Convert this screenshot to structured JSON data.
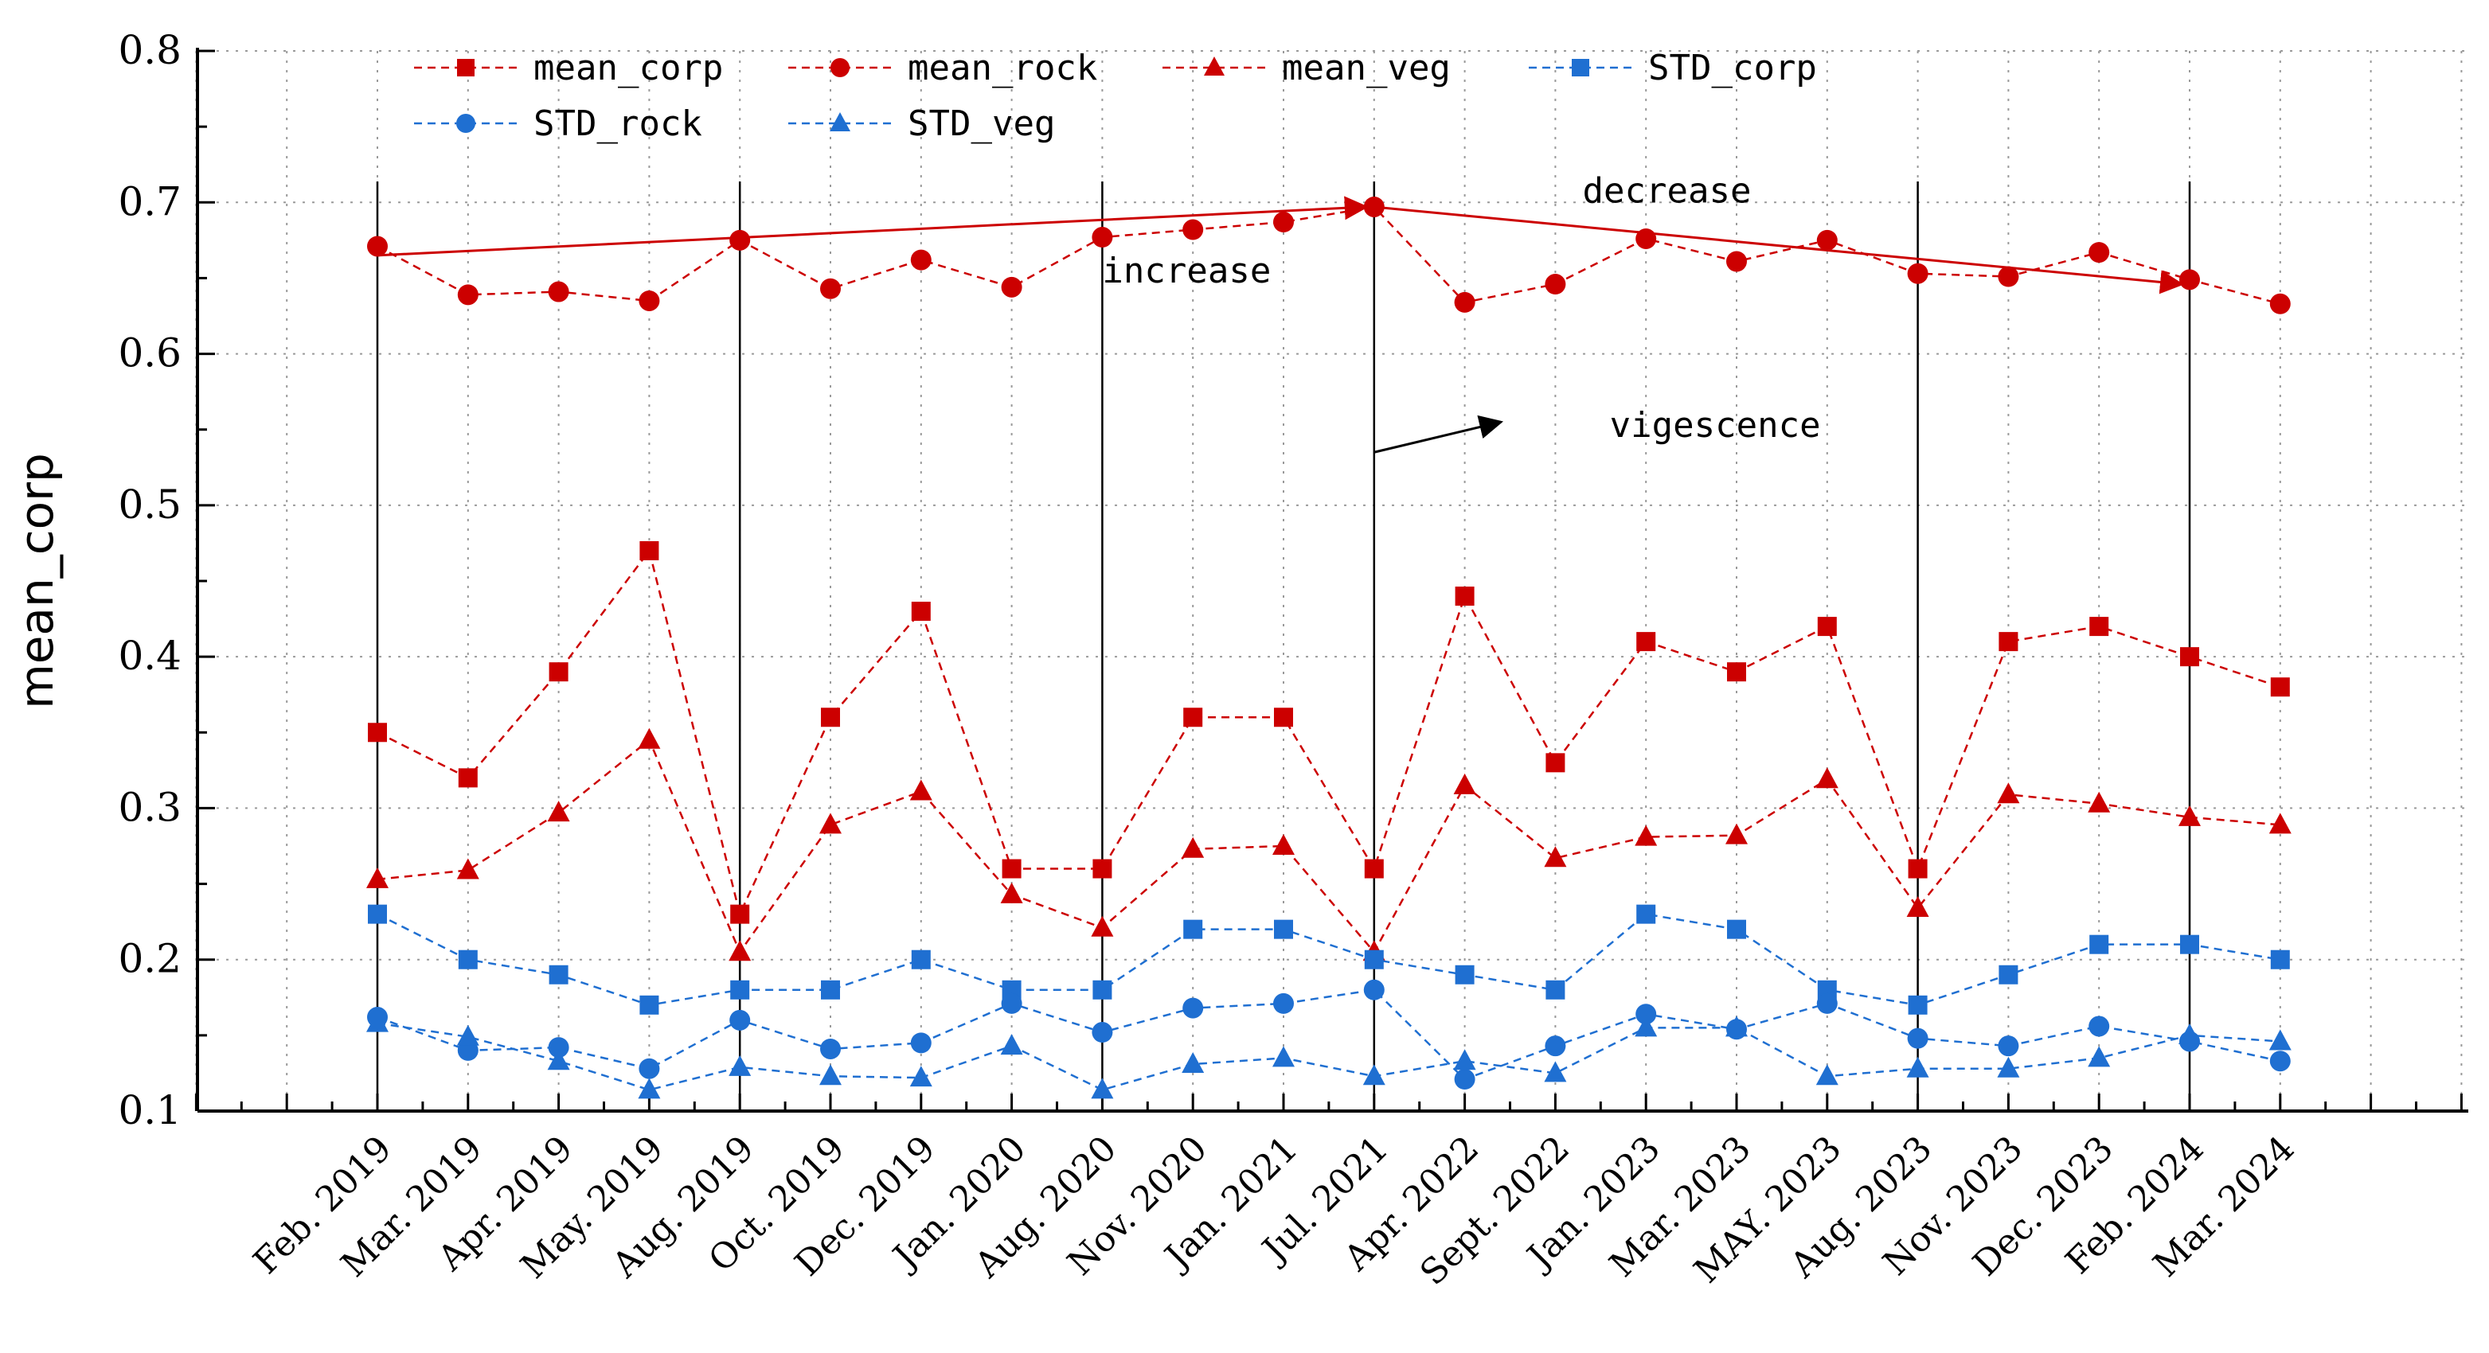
{
  "chart_data": {
    "type": "line",
    "ylabel": "mean_corp",
    "xlabel": "",
    "ylim": [
      0.1,
      0.8
    ],
    "yticks": [
      "0.1",
      "0.2",
      "0.3",
      "0.4",
      "0.5",
      "0.6",
      "0.7",
      "0.8"
    ],
    "grid": true,
    "categories": [
      "Feb. 2019",
      "Mar. 2019",
      "Apr. 2019",
      "May. 2019",
      "Aug. 2019",
      "Oct. 2019",
      "Dec. 2019",
      "Jan. 2020",
      "Aug. 2020",
      "Nov. 2020",
      "Jan. 2021",
      "Jul. 2021",
      "Apr. 2022",
      "Sept. 2022",
      "Jan. 2023",
      "Mar. 2023",
      "MAY. 2023",
      "Aug. 2023",
      "Nov. 2023",
      "Dec. 2023",
      "Feb. 2024",
      "Mar. 2024"
    ],
    "series": [
      {
        "name": "mean_corp",
        "color": "#cc0000",
        "marker": "square",
        "values": [
          0.35,
          0.32,
          0.39,
          0.47,
          0.23,
          0.36,
          0.43,
          0.26,
          0.26,
          0.36,
          0.36,
          0.26,
          0.44,
          0.33,
          0.41,
          0.39,
          0.42,
          0.26,
          0.41,
          0.42,
          0.4,
          0.38
        ]
      },
      {
        "name": "mean_rock",
        "color": "#cc0000",
        "marker": "circle",
        "values": [
          0.671,
          0.639,
          0.641,
          0.635,
          0.675,
          0.643,
          0.662,
          0.644,
          0.677,
          0.682,
          0.687,
          0.697,
          0.634,
          0.646,
          0.676,
          0.661,
          0.675,
          0.653,
          0.651,
          0.667,
          0.649,
          0.633
        ]
      },
      {
        "name": "mean_veg",
        "color": "#cc0000",
        "marker": "triangle",
        "values": [
          0.253,
          0.259,
          0.297,
          0.345,
          0.205,
          0.289,
          0.311,
          0.243,
          0.221,
          0.273,
          0.275,
          0.205,
          0.315,
          0.267,
          0.281,
          0.282,
          0.319,
          0.234,
          0.309,
          0.303,
          0.294,
          0.289
        ]
      },
      {
        "name": "STD_corp",
        "color": "#1f6fd1",
        "marker": "square",
        "values": [
          0.23,
          0.2,
          0.19,
          0.17,
          0.18,
          0.18,
          0.2,
          0.18,
          0.18,
          0.22,
          0.22,
          0.2,
          0.19,
          0.18,
          0.23,
          0.22,
          0.18,
          0.17,
          0.19,
          0.21,
          0.21,
          0.2
        ]
      },
      {
        "name": "STD_rock",
        "color": "#1f6fd1",
        "marker": "circle",
        "values": [
          0.162,
          0.14,
          0.142,
          0.128,
          0.16,
          0.141,
          0.145,
          0.171,
          0.152,
          0.168,
          0.171,
          0.18,
          0.121,
          0.143,
          0.164,
          0.154,
          0.171,
          0.148,
          0.143,
          0.156,
          0.146,
          0.133
        ]
      },
      {
        "name": "STD_veg",
        "color": "#1f6fd1",
        "marker": "triangle",
        "values": [
          0.158,
          0.149,
          0.133,
          0.114,
          0.129,
          0.123,
          0.122,
          0.143,
          0.114,
          0.131,
          0.135,
          0.123,
          0.133,
          0.125,
          0.155,
          0.155,
          0.123,
          0.128,
          0.128,
          0.135,
          0.15,
          0.146
        ]
      }
    ],
    "separators_after_index": [
      0,
      4,
      8,
      11,
      17,
      20
    ],
    "annotations": [
      {
        "text": "increase",
        "x_index": 8,
        "y": 0.647
      },
      {
        "text": "decrease",
        "x_index": 13.3,
        "y": 0.7
      },
      {
        "text": "vigescence",
        "x_index": 13.6,
        "y": 0.545
      }
    ],
    "trend_lines": [
      {
        "from": [
          0,
          0.665
        ],
        "to": [
          11,
          0.697
        ],
        "label": "increase"
      },
      {
        "from": [
          11,
          0.697
        ],
        "to": [
          20,
          0.646
        ],
        "label": "decrease"
      }
    ],
    "pointer_arrow": {
      "from": [
        11,
        0.535
      ],
      "to": [
        12.4,
        0.555
      ],
      "label": "vigescence"
    }
  }
}
